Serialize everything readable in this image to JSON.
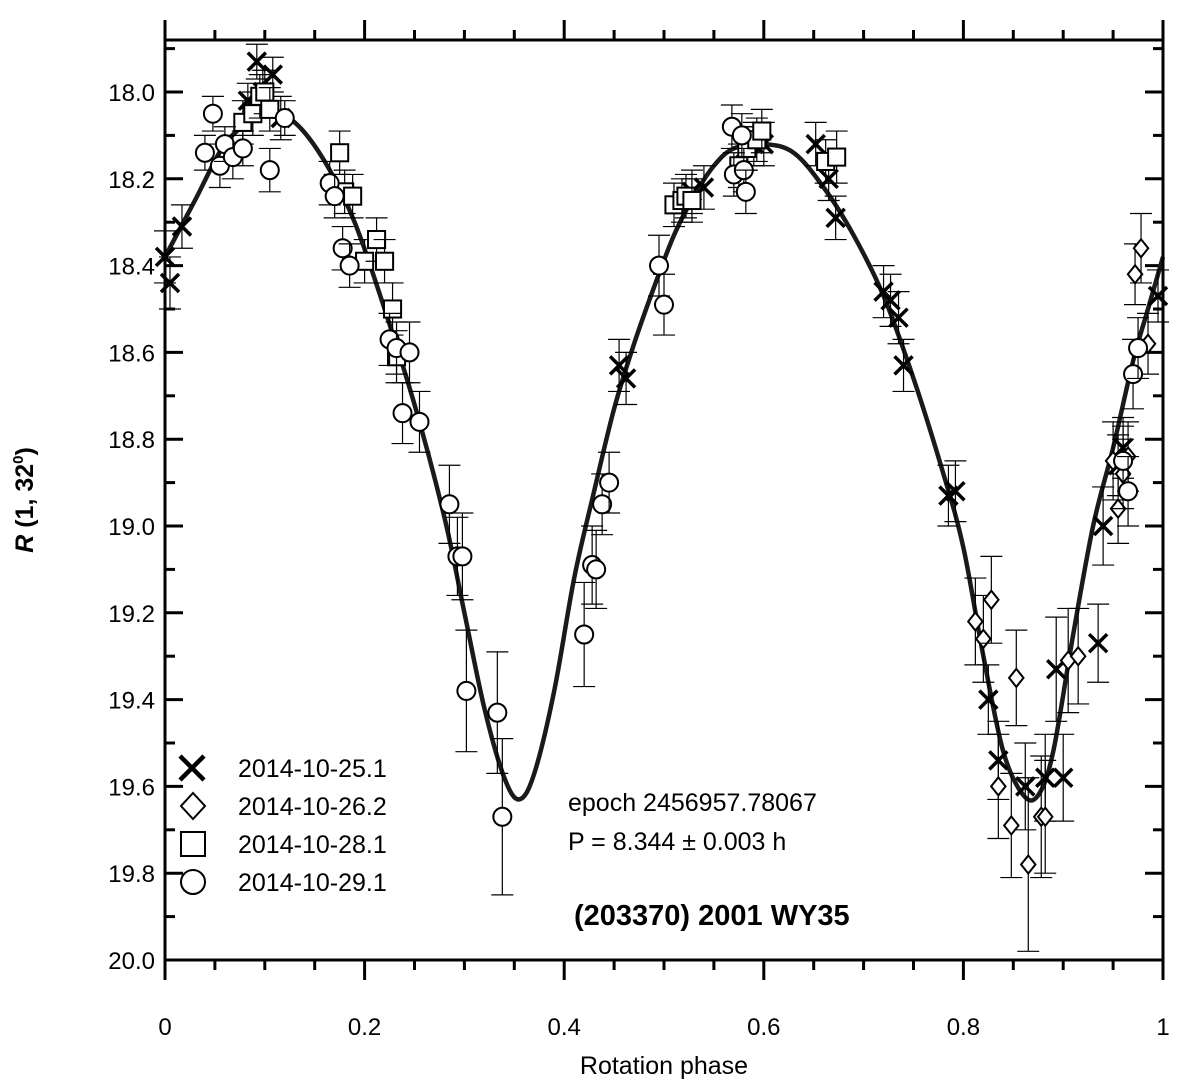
{
  "chart_data": {
    "type": "scatter",
    "title": "(203370) 2001 WY35",
    "xlabel": "Rotation phase",
    "ylabel_main": "R",
    "ylabel_rest": " (1, 32",
    "ylabel_sup": "0",
    "ylabel_end": ")",
    "annotation_epoch": "epoch 2456957.78067",
    "annotation_period": "P = 8.344 ± 0.003 h",
    "xlim": [
      0,
      1
    ],
    "ylim": [
      17.88,
      20.0
    ],
    "y_inverted": true,
    "x_major_ticks": [
      0,
      0.2,
      0.4,
      0.6,
      0.8,
      1
    ],
    "x_tick_labels": [
      "0",
      "0.2",
      "0.4",
      "0.6",
      "0.8",
      "1"
    ],
    "y_major_ticks": [
      18.0,
      18.2,
      18.4,
      18.6,
      18.8,
      19.0,
      19.2,
      19.4,
      19.6,
      19.8,
      20.0
    ],
    "y_tick_labels": [
      "18.0",
      "18.2",
      "18.4",
      "18.6",
      "18.8",
      "19.0",
      "19.2",
      "19.4",
      "19.6",
      "19.8",
      "20.0"
    ],
    "legend_placement": "bottom-left",
    "fit_curve": [
      [
        0.0,
        18.38
      ],
      [
        0.03,
        18.25
      ],
      [
        0.06,
        18.12
      ],
      [
        0.09,
        18.06
      ],
      [
        0.105,
        18.05
      ],
      [
        0.13,
        18.07
      ],
      [
        0.16,
        18.16
      ],
      [
        0.19,
        18.3
      ],
      [
        0.22,
        18.5
      ],
      [
        0.25,
        18.72
      ],
      [
        0.28,
        18.98
      ],
      [
        0.3,
        19.2
      ],
      [
        0.32,
        19.42
      ],
      [
        0.34,
        19.58
      ],
      [
        0.355,
        19.63
      ],
      [
        0.37,
        19.57
      ],
      [
        0.39,
        19.38
      ],
      [
        0.41,
        19.12
      ],
      [
        0.43,
        18.92
      ],
      [
        0.45,
        18.73
      ],
      [
        0.47,
        18.58
      ],
      [
        0.49,
        18.45
      ],
      [
        0.51,
        18.33
      ],
      [
        0.53,
        18.24
      ],
      [
        0.55,
        18.17
      ],
      [
        0.57,
        18.13
      ],
      [
        0.6,
        18.12
      ],
      [
        0.63,
        18.14
      ],
      [
        0.66,
        18.22
      ],
      [
        0.69,
        18.33
      ],
      [
        0.72,
        18.47
      ],
      [
        0.75,
        18.66
      ],
      [
        0.78,
        18.88
      ],
      [
        0.8,
        19.05
      ],
      [
        0.82,
        19.3
      ],
      [
        0.84,
        19.52
      ],
      [
        0.86,
        19.62
      ],
      [
        0.875,
        19.62
      ],
      [
        0.89,
        19.52
      ],
      [
        0.91,
        19.25
      ],
      [
        0.93,
        19.0
      ],
      [
        0.95,
        18.82
      ],
      [
        0.97,
        18.62
      ],
      [
        0.985,
        18.5
      ],
      [
        1.0,
        18.38
      ]
    ],
    "series": [
      {
        "name": "2014-10-25.1",
        "marker": "cross",
        "points": [
          [
            0.0,
            18.38,
            0.06
          ],
          [
            0.005,
            18.44,
            0.06
          ],
          [
            0.017,
            18.31,
            0.05
          ],
          [
            0.083,
            18.02,
            0.04
          ],
          [
            0.092,
            17.93,
            0.04
          ],
          [
            0.098,
            18.0,
            0.05
          ],
          [
            0.108,
            17.96,
            0.04
          ],
          [
            0.116,
            18.06,
            0.05
          ],
          [
            0.455,
            18.63,
            0.06
          ],
          [
            0.462,
            18.66,
            0.06
          ],
          [
            0.528,
            18.23,
            0.05
          ],
          [
            0.54,
            18.22,
            0.05
          ],
          [
            0.582,
            18.13,
            0.05
          ],
          [
            0.59,
            18.12,
            0.05
          ],
          [
            0.6,
            18.12,
            0.05
          ],
          [
            0.652,
            18.12,
            0.05
          ],
          [
            0.665,
            18.2,
            0.05
          ],
          [
            0.672,
            18.29,
            0.05
          ],
          [
            0.72,
            18.46,
            0.06
          ],
          [
            0.727,
            18.48,
            0.06
          ],
          [
            0.735,
            18.52,
            0.06
          ],
          [
            0.74,
            18.63,
            0.06
          ],
          [
            0.785,
            18.93,
            0.07
          ],
          [
            0.792,
            18.92,
            0.07
          ],
          [
            0.825,
            19.4,
            0.08
          ],
          [
            0.835,
            19.54,
            0.09
          ],
          [
            0.862,
            19.6,
            0.1
          ],
          [
            0.882,
            19.58,
            0.1
          ],
          [
            0.893,
            19.33,
            0.12
          ],
          [
            0.9,
            19.58,
            0.1
          ],
          [
            0.935,
            19.27,
            0.09
          ],
          [
            0.94,
            19.0,
            0.09
          ],
          [
            0.955,
            18.86,
            0.07
          ],
          [
            0.96,
            18.82,
            0.07
          ],
          [
            0.995,
            18.47,
            0.06
          ]
        ]
      },
      {
        "name": "2014-10-26.2",
        "marker": "diamond",
        "points": [
          [
            0.812,
            19.22,
            0.1
          ],
          [
            0.82,
            19.26,
            0.1
          ],
          [
            0.828,
            19.17,
            0.1
          ],
          [
            0.835,
            19.6,
            0.12
          ],
          [
            0.848,
            19.69,
            0.12
          ],
          [
            0.853,
            19.35,
            0.11
          ],
          [
            0.865,
            19.78,
            0.2
          ],
          [
            0.878,
            19.67,
            0.14
          ],
          [
            0.882,
            19.67,
            0.13
          ],
          [
            0.905,
            19.31,
            0.12
          ],
          [
            0.915,
            19.3,
            0.11
          ],
          [
            0.95,
            18.85,
            0.09
          ],
          [
            0.955,
            18.96,
            0.08
          ],
          [
            0.96,
            18.88,
            0.08
          ],
          [
            0.965,
            18.84,
            0.08
          ],
          [
            0.972,
            18.42,
            0.07
          ],
          [
            0.978,
            18.36,
            0.08
          ],
          [
            0.985,
            18.58,
            0.07
          ]
        ]
      },
      {
        "name": "2014-10-28.1",
        "marker": "square",
        "points": [
          [
            0.078,
            18.07,
            0.05
          ],
          [
            0.088,
            18.05,
            0.05
          ],
          [
            0.095,
            18.01,
            0.05
          ],
          [
            0.1,
            18.0,
            0.05
          ],
          [
            0.105,
            18.04,
            0.05
          ],
          [
            0.175,
            18.14,
            0.05
          ],
          [
            0.18,
            18.23,
            0.05
          ],
          [
            0.188,
            18.24,
            0.05
          ],
          [
            0.2,
            18.39,
            0.05
          ],
          [
            0.212,
            18.34,
            0.05
          ],
          [
            0.22,
            18.39,
            0.05
          ],
          [
            0.228,
            18.5,
            0.06
          ],
          [
            0.232,
            18.61,
            0.06
          ],
          [
            0.51,
            18.26,
            0.05
          ],
          [
            0.518,
            18.25,
            0.05
          ],
          [
            0.522,
            18.24,
            0.05
          ],
          [
            0.528,
            18.25,
            0.05
          ],
          [
            0.575,
            18.17,
            0.05
          ],
          [
            0.583,
            18.13,
            0.05
          ],
          [
            0.593,
            18.11,
            0.05
          ],
          [
            0.598,
            18.09,
            0.05
          ],
          [
            0.662,
            18.16,
            0.05
          ],
          [
            0.673,
            18.15,
            0.06
          ]
        ]
      },
      {
        "name": "2014-10-29.1",
        "marker": "circle",
        "points": [
          [
            0.04,
            18.14,
            0.04
          ],
          [
            0.048,
            18.05,
            0.04
          ],
          [
            0.055,
            18.17,
            0.05
          ],
          [
            0.06,
            18.12,
            0.04
          ],
          [
            0.068,
            18.15,
            0.05
          ],
          [
            0.078,
            18.13,
            0.04
          ],
          [
            0.105,
            18.18,
            0.05
          ],
          [
            0.12,
            18.06,
            0.04
          ],
          [
            0.165,
            18.21,
            0.05
          ],
          [
            0.17,
            18.24,
            0.05
          ],
          [
            0.178,
            18.36,
            0.05
          ],
          [
            0.185,
            18.4,
            0.05
          ],
          [
            0.225,
            18.57,
            0.06
          ],
          [
            0.232,
            18.59,
            0.06
          ],
          [
            0.238,
            18.74,
            0.07
          ],
          [
            0.245,
            18.6,
            0.07
          ],
          [
            0.255,
            18.76,
            0.07
          ],
          [
            0.285,
            18.95,
            0.09
          ],
          [
            0.293,
            19.07,
            0.09
          ],
          [
            0.298,
            19.07,
            0.1
          ],
          [
            0.302,
            19.38,
            0.14
          ],
          [
            0.333,
            19.43,
            0.14
          ],
          [
            0.338,
            19.67,
            0.18
          ],
          [
            0.42,
            19.25,
            0.12
          ],
          [
            0.428,
            19.09,
            0.09
          ],
          [
            0.432,
            19.1,
            0.09
          ],
          [
            0.438,
            18.95,
            0.07
          ],
          [
            0.445,
            18.9,
            0.07
          ],
          [
            0.495,
            18.4,
            0.07
          ],
          [
            0.5,
            18.49,
            0.07
          ],
          [
            0.568,
            18.08,
            0.05
          ],
          [
            0.57,
            18.19,
            0.05
          ],
          [
            0.578,
            18.1,
            0.05
          ],
          [
            0.58,
            18.18,
            0.05
          ],
          [
            0.582,
            18.23,
            0.05
          ],
          [
            0.96,
            18.85,
            0.08
          ],
          [
            0.965,
            18.92,
            0.08
          ],
          [
            0.97,
            18.65,
            0.08
          ],
          [
            0.975,
            18.59,
            0.07
          ]
        ]
      }
    ]
  }
}
